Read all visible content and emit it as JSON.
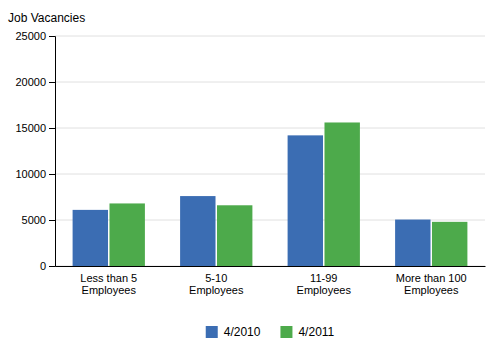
{
  "chart_data": {
    "type": "bar",
    "ylabel": "Job Vacancies",
    "categories": [
      "Less than 5\nEmployees",
      "5-10\nEmployees",
      "11-99\nEmployees",
      "More than 100\nEmployees"
    ],
    "series": [
      {
        "name": "4/2010",
        "color": "#3B6DB3",
        "values": [
          6100,
          7600,
          14200,
          5050
        ]
      },
      {
        "name": "4/2011",
        "color": "#4DAA4B",
        "values": [
          6800,
          6600,
          15600,
          4800
        ]
      }
    ],
    "ylim": [
      0,
      25000
    ],
    "yticks": [
      0,
      5000,
      10000,
      15000,
      20000,
      25000
    ],
    "grid": true,
    "legend": "bottom"
  }
}
